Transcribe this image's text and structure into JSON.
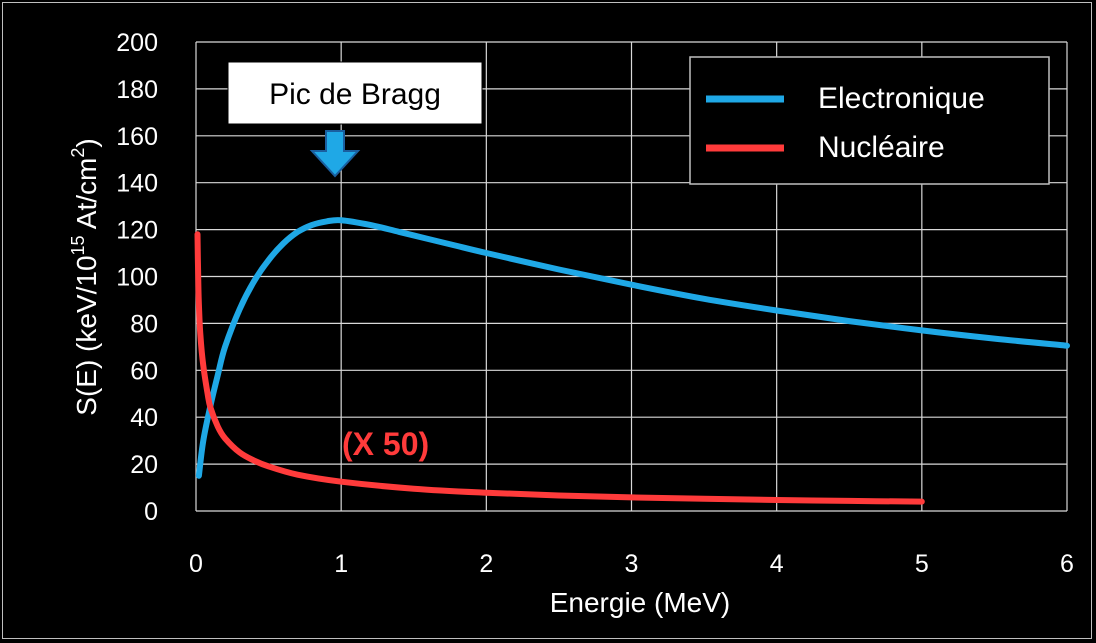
{
  "chart_data": {
    "type": "line",
    "title": "",
    "xlabel": "Energie (MeV)",
    "ylabel": {
      "prefix": "S(E) (keV/10",
      "exp1": "15",
      "mid": " At/cm",
      "exp2": "2",
      "suffix": ")"
    },
    "xlim": [
      0,
      6
    ],
    "ylim": [
      0,
      200
    ],
    "x_ticks": [
      "0",
      "1",
      "2",
      "3",
      "4",
      "5",
      "6"
    ],
    "y_ticks": [
      "0",
      "20",
      "40",
      "60",
      "80",
      "100",
      "120",
      "140",
      "160",
      "180",
      "200"
    ],
    "grid": true,
    "legend_position": "top-right",
    "series": [
      {
        "name": "Electronique",
        "color": "#1fa8e6",
        "points": [
          [
            0.02,
            15
          ],
          [
            0.05,
            30
          ],
          [
            0.1,
            45
          ],
          [
            0.15,
            58
          ],
          [
            0.2,
            70
          ],
          [
            0.3,
            86
          ],
          [
            0.4,
            98
          ],
          [
            0.5,
            107
          ],
          [
            0.6,
            114
          ],
          [
            0.7,
            119
          ],
          [
            0.8,
            122
          ],
          [
            0.9,
            123.5
          ],
          [
            1.0,
            124
          ],
          [
            1.2,
            122
          ],
          [
            1.4,
            119
          ],
          [
            1.6,
            116
          ],
          [
            1.8,
            113
          ],
          [
            2.0,
            110
          ],
          [
            2.5,
            103
          ],
          [
            3.0,
            96.5
          ],
          [
            3.5,
            90.5
          ],
          [
            4.0,
            85.5
          ],
          [
            4.5,
            81
          ],
          [
            5.0,
            77
          ],
          [
            5.5,
            73.5
          ],
          [
            6.0,
            70.5
          ]
        ]
      },
      {
        "name": "Nucléaire",
        "color": "#ff3b3b",
        "points": [
          [
            0.01,
            118
          ],
          [
            0.015,
            100
          ],
          [
            0.02,
            88
          ],
          [
            0.03,
            75
          ],
          [
            0.05,
            62
          ],
          [
            0.08,
            50
          ],
          [
            0.1,
            44
          ],
          [
            0.15,
            36
          ],
          [
            0.2,
            31
          ],
          [
            0.3,
            25
          ],
          [
            0.4,
            21.5
          ],
          [
            0.5,
            19
          ],
          [
            0.7,
            15.5
          ],
          [
            1.0,
            12.5
          ],
          [
            1.5,
            9.5
          ],
          [
            2.0,
            7.8
          ],
          [
            2.5,
            6.6
          ],
          [
            3.0,
            5.8
          ],
          [
            3.5,
            5.2
          ],
          [
            4.0,
            4.7
          ],
          [
            4.5,
            4.3
          ],
          [
            5.0,
            4.0
          ]
        ]
      }
    ],
    "annotations": {
      "bragg_label": "Pic de Bragg",
      "bragg_x": 1.0,
      "multiplier_label": "(X 50)",
      "multiplier_color": "#ff3b3b",
      "arrow_color": "#1fa8e6"
    }
  }
}
